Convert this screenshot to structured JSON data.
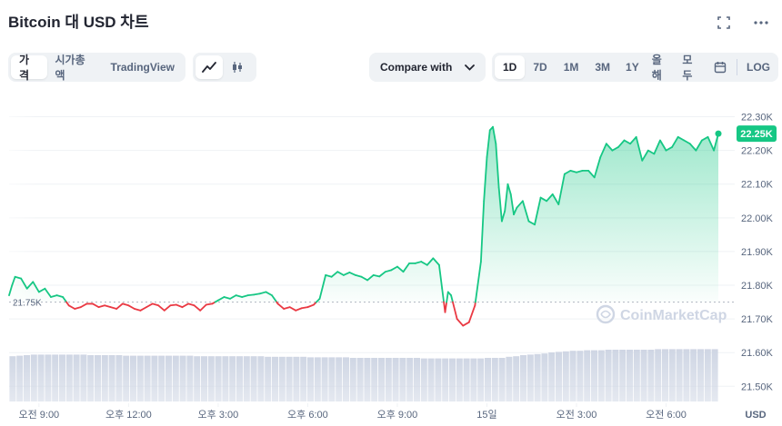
{
  "header": {
    "title": "Bitcoin 대 USD 차트",
    "fullscreen_icon": "expand-icon",
    "more_icon": "more-horizontal-icon"
  },
  "tabs": {
    "items": [
      "가격",
      "시가총액",
      "TradingView"
    ],
    "active": "가격"
  },
  "chart_types": {
    "items": [
      "line-chart-icon",
      "candlestick-icon"
    ],
    "active": "line-chart-icon"
  },
  "compare": {
    "label": "Compare with",
    "icon": "chevron-down-icon"
  },
  "ranges": {
    "items": [
      "1D",
      "7D",
      "1M",
      "3M",
      "1Y",
      "올해",
      "모두"
    ],
    "active": "1D",
    "calendar_icon": "calendar-icon",
    "log_label": "LOG"
  },
  "watermark": {
    "text": "CoinMarketCap"
  },
  "colors": {
    "up": "#16c784",
    "down": "#ea3943",
    "reference_line": "#aeb4c0",
    "volume": "#cfd6e4",
    "grid": "#eff2f5",
    "axis_text": "#58667e",
    "price_badge": "#16c784"
  },
  "chart_data": {
    "type": "line",
    "reference_value": 21750,
    "reference_label": "21.75K",
    "current_price_label": "22.25K",
    "ylim": [
      21455,
      22350
    ],
    "y_ticks": [
      21500,
      21600,
      21700,
      21800,
      21900,
      22000,
      22100,
      22200,
      22300
    ],
    "y_tick_labels": [
      "21.50K",
      "21.60K",
      "21.70K",
      "21.80K",
      "21.90K",
      "22.00K",
      "22.10K",
      "22.20K",
      "22.30K"
    ],
    "x_range_hours": [
      8.0,
      31.75
    ],
    "x_ticks": [
      9,
      12,
      15,
      18,
      21,
      24,
      27,
      30
    ],
    "x_tick_labels": [
      "오전 9:00",
      "오후 12:00",
      "오후 3:00",
      "오후 6:00",
      "오후 9:00",
      "15일",
      "오전 3:00",
      "오전 6:00"
    ],
    "series": [
      {
        "x": [
          8.0,
          8.1,
          8.2,
          8.4,
          8.6,
          8.8,
          9.0,
          9.2,
          9.4,
          9.6,
          9.8,
          10.0,
          10.2,
          10.4,
          10.6,
          10.8,
          11.0,
          11.2,
          11.4,
          11.6,
          11.8,
          12.0,
          12.2,
          12.4,
          12.6,
          12.8,
          13.0,
          13.2,
          13.4,
          13.6,
          13.8,
          14.0,
          14.2,
          14.4,
          14.6,
          14.8,
          15.0,
          15.2,
          15.4,
          15.6,
          15.8,
          16.0,
          16.2,
          16.4,
          16.6,
          16.8,
          17.0,
          17.2,
          17.4,
          17.6,
          17.8,
          18.0,
          18.2,
          18.4,
          18.6,
          18.8,
          19.0,
          19.2,
          19.4,
          19.6,
          19.8,
          20.0,
          20.2,
          20.4,
          20.6,
          20.8,
          21.0,
          21.2,
          21.4,
          21.6,
          21.8,
          22.0,
          22.2,
          22.4,
          22.5,
          22.6,
          22.7,
          22.8,
          23.0,
          23.2,
          23.4,
          23.6,
          23.8,
          23.9,
          24.0,
          24.1,
          24.2,
          24.3,
          24.4,
          24.5,
          24.6,
          24.7,
          24.8,
          24.9,
          25.0,
          25.2,
          25.4,
          25.6,
          25.8,
          26.0,
          26.2,
          26.4,
          26.6,
          26.8,
          27.0,
          27.2,
          27.4,
          27.6,
          27.8,
          28.0,
          28.2,
          28.4,
          28.6,
          28.8,
          29.0,
          29.2,
          29.4,
          29.6,
          29.8,
          30.0,
          30.2,
          30.4,
          30.6,
          30.8,
          31.0,
          31.2,
          31.4,
          31.6,
          31.75
        ],
        "y": [
          21770,
          21800,
          21825,
          21820,
          21790,
          21810,
          21780,
          21790,
          21765,
          21770,
          21765,
          21740,
          21730,
          21735,
          21745,
          21745,
          21735,
          21740,
          21735,
          21730,
          21745,
          21740,
          21730,
          21725,
          21735,
          21745,
          21740,
          21725,
          21740,
          21742,
          21735,
          21745,
          21740,
          21725,
          21742,
          21745,
          21755,
          21765,
          21760,
          21770,
          21765,
          21770,
          21772,
          21775,
          21780,
          21770,
          21745,
          21730,
          21735,
          21725,
          21732,
          21735,
          21742,
          21760,
          21830,
          21825,
          21840,
          21830,
          21838,
          21830,
          21825,
          21815,
          21830,
          21826,
          21840,
          21845,
          21855,
          21840,
          21865,
          21865,
          21870,
          21860,
          21880,
          21860,
          21790,
          21720,
          21780,
          21770,
          21700,
          21680,
          21690,
          21740,
          21870,
          22050,
          22180,
          22260,
          22270,
          22220,
          22090,
          21990,
          22020,
          22100,
          22070,
          22010,
          22030,
          22050,
          21990,
          21980,
          22060,
          22050,
          22070,
          22040,
          22130,
          22140,
          22135,
          22140,
          22140,
          22120,
          22180,
          22220,
          22200,
          22210,
          22230,
          22220,
          22240,
          22170,
          22200,
          22190,
          22230,
          22200,
          22210,
          22240,
          22230,
          22220,
          22200,
          22230,
          22240,
          22200,
          22250
        ]
      }
    ],
    "volume": [
      0.83,
      0.84,
      0.85,
      0.86,
      0.86,
      0.86,
      0.86,
      0.86,
      0.86,
      0.86,
      0.86,
      0.85,
      0.85,
      0.85,
      0.85,
      0.85,
      0.84,
      0.84,
      0.84,
      0.84,
      0.84,
      0.84,
      0.84,
      0.84,
      0.84,
      0.84,
      0.83,
      0.83,
      0.83,
      0.83,
      0.83,
      0.83,
      0.83,
      0.83,
      0.83,
      0.83,
      0.82,
      0.82,
      0.82,
      0.82,
      0.82,
      0.82,
      0.81,
      0.81,
      0.81,
      0.81,
      0.81,
      0.81,
      0.8,
      0.8,
      0.8,
      0.8,
      0.8,
      0.8,
      0.8,
      0.8,
      0.8,
      0.8,
      0.79,
      0.79,
      0.79,
      0.79,
      0.79,
      0.79,
      0.79,
      0.79,
      0.79,
      0.8,
      0.8,
      0.8,
      0.82,
      0.83,
      0.85,
      0.86,
      0.87,
      0.88,
      0.9,
      0.91,
      0.92,
      0.93,
      0.93,
      0.94,
      0.94,
      0.94,
      0.95,
      0.95,
      0.95,
      0.95,
      0.95,
      0.95,
      0.95,
      0.96,
      0.96,
      0.96,
      0.96,
      0.96,
      0.96,
      0.96,
      0.96,
      0.96
    ]
  }
}
